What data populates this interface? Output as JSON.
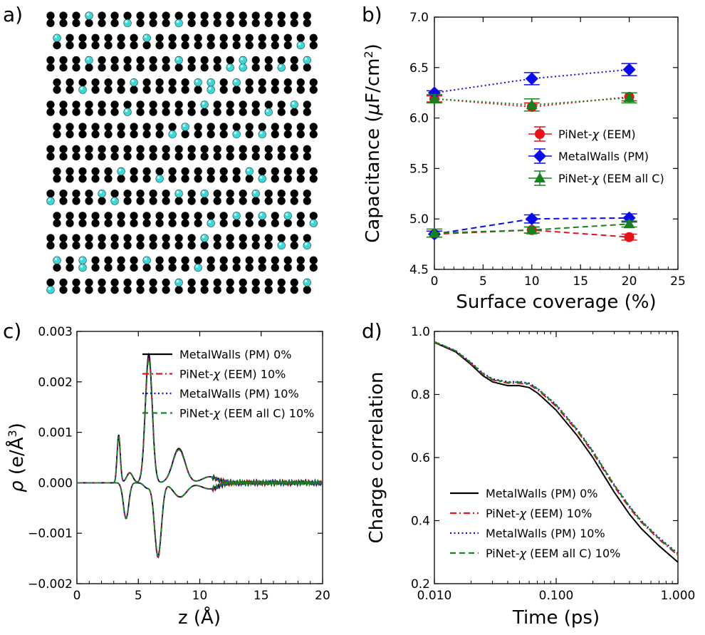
{
  "panel_labels": [
    "a)",
    "b)",
    "c)",
    "d)"
  ],
  "panel_a": {
    "atoms": "carbon graphene lattice with fluorine atoms (cyan) at 10% coverage",
    "carbon_color": "#000000",
    "fluorine_color": "#3fd6d6"
  },
  "chart_data": [
    {
      "panel": "b",
      "type": "scatter",
      "title": "",
      "xlabel": "Surface coverage (%)",
      "ylabel_parts": [
        "Capacitance (",
        "μ",
        "F/cm",
        "2",
        ")"
      ],
      "xlim": [
        0,
        25
      ],
      "ylim": [
        4.5,
        7.0
      ],
      "xticks": [
        "0",
        "5",
        "10",
        "15",
        "20",
        "25"
      ],
      "yticks": [
        "4.5",
        "5.0",
        "5.5",
        "6.0",
        "6.5",
        "7.0"
      ],
      "legend_position": "right-middle",
      "series": [
        {
          "name": "PiNet-χ (EEM)",
          "legend_parts": [
            "PiNet-",
            "χ",
            " (EEM)"
          ],
          "marker": "circle",
          "color": "#e8101a",
          "groups": [
            {
              "style": "dotted",
              "x": [
                0,
                10,
                20
              ],
              "y": [
                6.19,
                6.11,
                6.21
              ],
              "err": [
                0.03,
                0.04,
                0.04
              ]
            },
            {
              "style": "dashed",
              "x": [
                0,
                10,
                20
              ],
              "y": [
                4.85,
                4.89,
                4.82
              ],
              "err": [
                0.03,
                0.03,
                0.03
              ]
            }
          ]
        },
        {
          "name": "MetalWalls (PM)",
          "legend_parts": [
            "MetalWalls (PM)"
          ],
          "marker": "diamond",
          "color": "#0b0bea",
          "groups": [
            {
              "style": "dotted",
              "x": [
                0,
                10,
                20
              ],
              "y": [
                6.25,
                6.39,
                6.48
              ],
              "err": [
                0.02,
                0.06,
                0.06
              ]
            },
            {
              "style": "dashed",
              "x": [
                0,
                10,
                20
              ],
              "y": [
                4.85,
                5.0,
                5.01
              ],
              "err": [
                0.03,
                0.04,
                0.04
              ]
            }
          ]
        },
        {
          "name": "PiNet-χ (EEM all C)",
          "legend_parts": [
            "PiNet-",
            "χ",
            " (EEM all C)"
          ],
          "marker": "triangle",
          "color": "#16821e",
          "groups": [
            {
              "style": "dotted",
              "x": [
                0,
                10,
                20
              ],
              "y": [
                6.19,
                6.13,
                6.2
              ],
              "err": [
                0.04,
                0.06,
                0.05
              ]
            },
            {
              "style": "dashed",
              "x": [
                0,
                10,
                20
              ],
              "y": [
                4.86,
                4.89,
                4.95
              ],
              "err": [
                0.04,
                0.03,
                0.03
              ]
            }
          ]
        }
      ]
    },
    {
      "panel": "c",
      "type": "line",
      "title": "",
      "xlabel": "z (Å)",
      "ylabel_parts": [
        "ρ",
        " (e/Å",
        "3",
        ")"
      ],
      "xlim": [
        0,
        20
      ],
      "ylim": [
        -0.002,
        0.003
      ],
      "xticks": [
        "0",
        "5",
        "10",
        "15",
        "20"
      ],
      "yticks": [
        "−0.002",
        "−0.001",
        "0.000",
        "0.001",
        "0.002",
        "0.003"
      ],
      "legend_position": "top-right",
      "series": [
        {
          "name": "MetalWalls (PM) 0%",
          "legend_parts": [
            "MetalWalls (PM) 0%"
          ],
          "color": "#000000",
          "style": "solid",
          "pos_scale": 1.0,
          "neg_scale": 1.0
        },
        {
          "name": "PiNet-χ (EEM) 10%",
          "legend_parts": [
            "PiNet-",
            "χ",
            " (EEM) 10%"
          ],
          "color": "#e8101a",
          "style": "dashdot",
          "pos_scale": 0.97,
          "neg_scale": 1.03
        },
        {
          "name": "MetalWalls (PM) 10%",
          "legend_parts": [
            "MetalWalls (PM) 10%"
          ],
          "color": "#0b0bea",
          "style": "dotted",
          "pos_scale": 0.98,
          "neg_scale": 1.02
        },
        {
          "name": "PiNet-χ (EEM all C) 10%",
          "legend_parts": [
            "PiNet-",
            "χ",
            " (EEM all C) 10%"
          ],
          "color": "#16821e",
          "style": "dashed",
          "pos_scale": 0.96,
          "neg_scale": 1.0
        }
      ],
      "profile_features": {
        "positive": [
          [
            3.4,
            0.00095,
            0.13
          ],
          [
            4.3,
            0.0002,
            0.25
          ],
          [
            5.85,
            0.00255,
            0.28
          ],
          [
            8.3,
            0.00068,
            0.5
          ],
          [
            10.8,
            0.00012,
            0.6
          ]
        ],
        "negative": [
          [
            4.0,
            -0.0007,
            0.22
          ],
          [
            5.7,
            -0.0001,
            0.25
          ],
          [
            6.6,
            -0.00145,
            0.28
          ],
          [
            8.4,
            -0.00028,
            0.55
          ],
          [
            10.8,
            -0.00012,
            0.7
          ]
        ]
      }
    },
    {
      "panel": "d",
      "type": "line",
      "title": "",
      "xlabel": "Time (ps)",
      "ylabel": "Charge correlation",
      "xscale": "log",
      "xlim": [
        0.01,
        1.0
      ],
      "ylim": [
        0.2,
        1.0
      ],
      "xticks": [
        "0.010",
        "0.100",
        "1.000"
      ],
      "yticks": [
        "0.2",
        "0.4",
        "0.6",
        "0.8",
        "1.0"
      ],
      "legend_position": "bottom-left",
      "series": [
        {
          "name": "MetalWalls (PM) 0%",
          "legend_parts": [
            "MetalWalls (PM) 0%"
          ],
          "color": "#000000",
          "style": "solid",
          "x": [
            0.01,
            0.015,
            0.02,
            0.025,
            0.03,
            0.04,
            0.05,
            0.06,
            0.07,
            0.08,
            0.1,
            0.15,
            0.2,
            0.3,
            0.4,
            0.5,
            0.7,
            1.0
          ],
          "y": [
            0.965,
            0.935,
            0.895,
            0.86,
            0.84,
            0.828,
            0.828,
            0.822,
            0.805,
            0.785,
            0.75,
            0.668,
            0.6,
            0.49,
            0.42,
            0.375,
            0.32,
            0.268
          ]
        },
        {
          "name": "PiNet-χ (EEM) 10%",
          "legend_parts": [
            "PiNet-",
            "χ",
            " (EEM) 10%"
          ],
          "color": "#e8101a",
          "style": "dashdot",
          "x": [
            0.01,
            0.015,
            0.02,
            0.025,
            0.03,
            0.04,
            0.05,
            0.06,
            0.07,
            0.08,
            0.1,
            0.15,
            0.2,
            0.3,
            0.4,
            0.5,
            0.7,
            1.0
          ],
          "y": [
            0.966,
            0.937,
            0.898,
            0.864,
            0.846,
            0.836,
            0.836,
            0.831,
            0.815,
            0.796,
            0.762,
            0.682,
            0.615,
            0.508,
            0.44,
            0.395,
            0.34,
            0.29
          ]
        },
        {
          "name": "MetalWalls (PM) 10%",
          "legend_parts": [
            "MetalWalls (PM) 10%"
          ],
          "color": "#0b0bea",
          "style": "dotted",
          "x": [
            0.01,
            0.015,
            0.02,
            0.025,
            0.03,
            0.04,
            0.05,
            0.06,
            0.07,
            0.08,
            0.1,
            0.15,
            0.2,
            0.3,
            0.4,
            0.5,
            0.7,
            1.0
          ],
          "y": [
            0.967,
            0.939,
            0.902,
            0.868,
            0.85,
            0.84,
            0.841,
            0.836,
            0.82,
            0.801,
            0.768,
            0.688,
            0.621,
            0.514,
            0.446,
            0.4,
            0.346,
            0.296
          ]
        },
        {
          "name": "PiNet-χ (EEM all C) 10%",
          "legend_parts": [
            "PiNet-",
            "χ",
            " (EEM all C) 10%"
          ],
          "color": "#16821e",
          "style": "dashed",
          "x": [
            0.01,
            0.015,
            0.02,
            0.025,
            0.03,
            0.04,
            0.05,
            0.06,
            0.07,
            0.08,
            0.1,
            0.15,
            0.2,
            0.3,
            0.4,
            0.5,
            0.7,
            1.0
          ],
          "y": [
            0.967,
            0.938,
            0.9,
            0.866,
            0.848,
            0.838,
            0.839,
            0.834,
            0.818,
            0.799,
            0.766,
            0.686,
            0.619,
            0.512,
            0.444,
            0.398,
            0.343,
            0.293
          ]
        }
      ]
    }
  ]
}
